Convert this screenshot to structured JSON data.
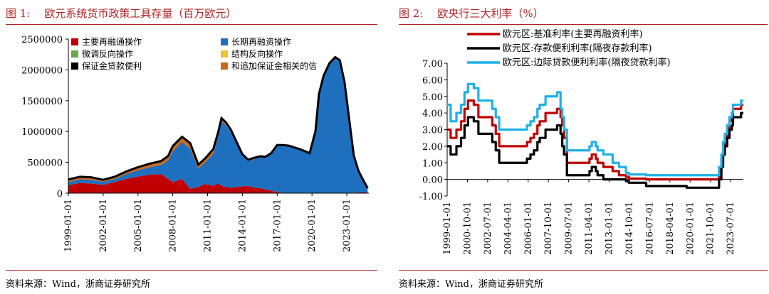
{
  "chart1": {
    "number": "图 1:",
    "title": "欧元系统货币政策工具存量（百万欧元）",
    "source": "资料来源：Wind，浙商证券研究所",
    "chart_data": {
      "type": "area",
      "stacked": true,
      "ylim": [
        0,
        2500000
      ],
      "yticks": [
        0,
        500000,
        1000000,
        1500000,
        2000000,
        2500000
      ],
      "yticklabels": [
        "0",
        "500000",
        "1000000",
        "1500000",
        "2000000",
        "2500000"
      ],
      "xticklabels": [
        "1999-01-01",
        "2002-01-01",
        "2005-01-01",
        "2008-01-01",
        "2011-01-01",
        "2014-01-01",
        "2017-01-01",
        "2020-01-01",
        "2023-01-01"
      ],
      "xtickyears": [
        1999,
        2002,
        2005,
        2008,
        2011,
        2014,
        2017,
        2020,
        2023
      ],
      "xrange": [
        1999.0,
        2024.9
      ],
      "legend": [
        "主要再融通操作",
        "长期再融资操作",
        "微调反向操作",
        "结构反向操作",
        "保证金贷款便利",
        "和追加保证金相关的信"
      ],
      "legend_colors": [
        "#c00000",
        "#1f6fbf",
        "#6aa84f",
        "#f1c232",
        "#000000",
        "#c8691e"
      ],
      "grid": false,
      "x": [
        1999.0,
        2000.0,
        2001.0,
        2002.0,
        2003.0,
        2004.0,
        2005.0,
        2006.0,
        2007.0,
        2007.6,
        2008.0,
        2008.8,
        2009.5,
        2010.2,
        2010.8,
        2011.5,
        2011.9,
        2012.2,
        2012.6,
        2013.0,
        2013.5,
        2014.0,
        2014.5,
        2015.0,
        2015.5,
        2016.0,
        2016.5,
        2017.0,
        2017.5,
        2018.0,
        2019.0,
        2019.8,
        2020.3,
        2020.6,
        2021.0,
        2021.5,
        2022.0,
        2022.4,
        2022.8,
        2023.2,
        2023.6,
        2024.0,
        2024.4,
        2024.8
      ],
      "series": [
        {
          "name": "主要再融通操作",
          "values": [
            130000,
            165000,
            155000,
            135000,
            180000,
            230000,
            270000,
            300000,
            310000,
            230000,
            180000,
            230000,
            70000,
            100000,
            150000,
            120000,
            160000,
            120000,
            100000,
            90000,
            100000,
            110000,
            120000,
            90000,
            80000,
            60000,
            40000,
            20000,
            5000,
            5000,
            5000,
            3000,
            2000,
            2000,
            1000,
            500,
            500,
            1000,
            2000,
            5000,
            8000,
            10000,
            12000,
            15000
          ]
        },
        {
          "name": "长期再融资操作",
          "values": [
            50000,
            60000,
            60000,
            50000,
            50000,
            80000,
            100000,
            120000,
            150000,
            300000,
            500000,
            600000,
            650000,
            300000,
            350000,
            520000,
            750000,
            1050000,
            1000000,
            900000,
            700000,
            500000,
            400000,
            460000,
            500000,
            520000,
            600000,
            750000,
            770000,
            760000,
            700000,
            640000,
            1000000,
            1600000,
            1900000,
            2100000,
            2200000,
            2150000,
            1800000,
            1200000,
            600000,
            350000,
            200000,
            60000
          ]
        },
        {
          "name": "微调反向操作",
          "values": [
            0,
            0,
            0,
            0,
            0,
            0,
            0,
            0,
            0,
            0,
            0,
            0,
            0,
            0,
            0,
            0,
            0,
            0,
            0,
            0,
            0,
            0,
            0,
            0,
            0,
            0,
            0,
            0,
            0,
            0,
            0,
            0,
            0,
            0,
            0,
            0,
            0,
            0,
            0,
            0,
            0,
            0,
            0,
            0
          ]
        },
        {
          "name": "结构反向操作",
          "values": [
            0,
            0,
            0,
            0,
            0,
            0,
            0,
            0,
            0,
            0,
            0,
            0,
            0,
            0,
            0,
            0,
            0,
            0,
            0,
            0,
            0,
            0,
            0,
            0,
            0,
            0,
            0,
            0,
            0,
            0,
            0,
            0,
            0,
            0,
            0,
            0,
            0,
            0,
            0,
            0,
            0,
            0,
            0,
            0
          ]
        },
        {
          "name": "保证金贷款便利",
          "values": [
            2000,
            2000,
            2000,
            2000,
            2000,
            2000,
            2000,
            2000,
            2000,
            3000,
            5000,
            5000,
            3000,
            3000,
            5000,
            8000,
            10000,
            8000,
            5000,
            3000,
            2000,
            2000,
            2000,
            2000,
            2000,
            2000,
            2000,
            2000,
            1000,
            1000,
            1000,
            1000,
            1000,
            1000,
            1000,
            1000,
            1000,
            1000,
            1000,
            1000,
            1000,
            1000,
            1000,
            1000
          ]
        },
        {
          "name": "和追加保证金相关的信",
          "values": [
            40000,
            40000,
            40000,
            30000,
            35000,
            40000,
            50000,
            55000,
            60000,
            70000,
            80000,
            80000,
            90000,
            60000,
            60000,
            70000,
            60000,
            40000,
            40000,
            40000,
            30000,
            20000,
            20000,
            20000,
            15000,
            10000,
            10000,
            10000,
            5000,
            5000,
            5000,
            5000,
            5000,
            5000,
            5000,
            5000,
            5000,
            5000,
            5000,
            5000,
            5000,
            5000,
            5000,
            5000
          ]
        }
      ]
    }
  },
  "chart2": {
    "number": "图 2:",
    "title": "欧央行三大利率（%）",
    "source": "资料来源：Wind，浙商证券研究所",
    "chart_data": {
      "type": "line",
      "ylim": [
        -1.0,
        7.0
      ],
      "yticks": [
        -1,
        0,
        1,
        2,
        3,
        4,
        5,
        6,
        7
      ],
      "yticklabels": [
        "-1.00",
        "0.00",
        "1.00",
        "2.00",
        "3.00",
        "4.00",
        "5.00",
        "6.00",
        "7.00"
      ],
      "xticklabels": [
        "1999-01-01",
        "2000-10-01",
        "2002-07-01",
        "2004-04-01",
        "2006-01-01",
        "2007-10-01",
        "2009-07-01",
        "2011-04-01",
        "2013-01-01",
        "2014-10-01",
        "2016-07-01",
        "2018-04-01",
        "2020-01-01",
        "2021-10-01",
        "2023-07-01"
      ],
      "xtickyears": [
        1999.0,
        2000.75,
        2002.5,
        2004.25,
        2006.0,
        2007.75,
        2009.5,
        2011.25,
        2013.0,
        2014.75,
        2016.5,
        2018.25,
        2020.0,
        2021.75,
        2023.5
      ],
      "xrange": [
        1999.0,
        2024.6
      ],
      "legend": [
        "欧元区:基准利率(主要再融资利率)",
        "欧元区:存款便利利率(隔夜存款利率)",
        "欧元区:边际贷款便利利率(隔夜贷款利率)"
      ],
      "grid": false,
      "series": [
        {
          "name": "欧元区:基准利率(主要再融资利率)",
          "color": "#c00000",
          "x": [
            1999.0,
            1999.3,
            1999.8,
            2000.2,
            2000.5,
            2000.8,
            2001.3,
            2001.7,
            2002.9,
            2003.2,
            2003.5,
            2005.9,
            2006.2,
            2006.5,
            2006.8,
            2007.0,
            2007.5,
            2008.5,
            2008.8,
            2008.95,
            2009.1,
            2009.35,
            2011.3,
            2011.5,
            2011.85,
            2012.0,
            2012.5,
            2013.3,
            2013.85,
            2014.45,
            2014.7,
            2016.2,
            2022.5,
            2022.7,
            2022.85,
            2023.0,
            2023.2,
            2023.4,
            2023.6,
            2023.7,
            2024.4,
            2024.6
          ],
          "values": [
            3.0,
            2.5,
            3.0,
            3.5,
            4.25,
            4.75,
            4.5,
            3.75,
            3.25,
            2.75,
            2.0,
            2.25,
            2.5,
            2.75,
            3.25,
            3.5,
            4.0,
            4.25,
            3.75,
            3.25,
            2.5,
            1.0,
            1.25,
            1.5,
            1.25,
            1.0,
            0.75,
            0.5,
            0.25,
            0.15,
            0.05,
            0.0,
            0.5,
            1.25,
            2.0,
            2.5,
            3.0,
            3.5,
            3.75,
            4.25,
            4.5,
            4.5
          ]
        },
        {
          "name": "欧元区:存款便利利率(隔夜存款利率)",
          "color": "#000000",
          "x": [
            1999.0,
            1999.3,
            1999.8,
            2000.2,
            2000.5,
            2000.8,
            2001.3,
            2001.7,
            2002.9,
            2003.2,
            2003.5,
            2005.9,
            2006.2,
            2006.5,
            2006.8,
            2007.0,
            2007.5,
            2008.5,
            2008.8,
            2008.95,
            2009.1,
            2009.35,
            2011.3,
            2011.5,
            2011.85,
            2012.0,
            2012.5,
            2013.3,
            2013.85,
            2014.45,
            2014.7,
            2016.2,
            2019.7,
            2022.5,
            2022.7,
            2022.85,
            2023.0,
            2023.2,
            2023.4,
            2023.6,
            2023.7,
            2024.4,
            2024.6
          ],
          "values": [
            2.0,
            1.5,
            2.0,
            2.5,
            3.25,
            3.75,
            3.5,
            2.75,
            2.25,
            1.75,
            1.0,
            1.25,
            1.5,
            1.75,
            2.25,
            2.5,
            3.0,
            3.25,
            2.75,
            2.0,
            1.5,
            0.25,
            0.5,
            0.75,
            0.5,
            0.25,
            0.0,
            0.0,
            0.0,
            -0.1,
            -0.2,
            -0.4,
            -0.5,
            0.0,
            0.75,
            1.5,
            2.0,
            2.5,
            3.0,
            3.25,
            3.75,
            4.0,
            4.0
          ]
        },
        {
          "name": "欧元区:边际贷款便利利率(隔夜贷款利率)",
          "color": "#1fb1e6",
          "x": [
            1999.0,
            1999.3,
            1999.8,
            2000.2,
            2000.5,
            2000.8,
            2001.3,
            2001.7,
            2002.9,
            2003.2,
            2003.5,
            2005.9,
            2006.2,
            2006.5,
            2006.8,
            2007.0,
            2007.5,
            2008.5,
            2008.8,
            2008.95,
            2009.1,
            2009.35,
            2011.3,
            2011.5,
            2011.85,
            2012.0,
            2012.5,
            2013.3,
            2013.85,
            2014.45,
            2014.7,
            2016.2,
            2022.5,
            2022.7,
            2022.85,
            2023.0,
            2023.2,
            2023.4,
            2023.6,
            2023.7,
            2024.4,
            2024.6
          ],
          "values": [
            4.5,
            3.5,
            4.0,
            4.5,
            5.25,
            5.75,
            5.5,
            4.75,
            4.25,
            3.75,
            3.0,
            3.25,
            3.5,
            3.75,
            4.25,
            4.5,
            5.0,
            5.25,
            4.25,
            3.75,
            3.0,
            1.75,
            2.0,
            2.25,
            2.0,
            1.75,
            1.5,
            1.0,
            0.75,
            0.4,
            0.3,
            0.25,
            0.75,
            1.5,
            2.25,
            2.75,
            3.25,
            3.75,
            4.0,
            4.5,
            4.75,
            4.75
          ]
        }
      ]
    }
  }
}
